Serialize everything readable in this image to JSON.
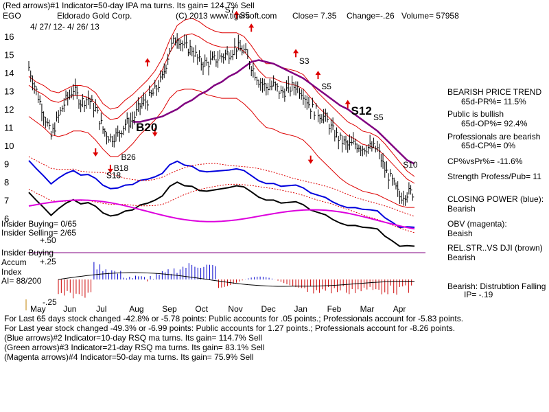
{
  "header": {
    "line1": "(Red arrows)#1 Indicator=50-day IPA ma turns. Its gain= 124.7% Sell",
    "ticker": "EGO",
    "company": "Eldorado Gold Corp.",
    "site": "(C) 2013 www.tigersoft.com",
    "close": "Close=  7.35",
    "change": "Change=-.26",
    "volume": "Volume=  57958",
    "date_range": "4/ 27/ 12-  4/ 26/ 13"
  },
  "right_panel": {
    "title": "BEARISH PRICE TREND",
    "pr": "65d-PR%= 11.5%",
    "public": "Public is bullish",
    "op": "65d-OP%= 92.4%",
    "pros": "Professionals are bearish",
    "cp": "65d-CP%= 0%",
    "cpvspr": "CP%vsPr%= -11.6%",
    "strength": "Strength Profess/Pub= 11",
    "closing_power": "CLOSING POWER (blue):",
    "cp_state": "Bearish",
    "obv": "OBV (magenta):",
    "obv_state": "Beaish",
    "relstr": "REL.STR..VS DJI (brown)",
    "relstr_state": "Bearish",
    "distribution": "Bearish:  Distrubtion Falling",
    "ip": "IP= -.19"
  },
  "left_panel": {
    "insider_buying": "Insider Buying= 0/65",
    "insider_selling": "Insider Selling= 2/65",
    "plus50": "+.50",
    "insider_buying2": "Insider Buying",
    "accum": "Accum",
    "plus25": "+.25",
    "index": "Index",
    "ai": "AI= 88/200",
    "minus25": "-.25"
  },
  "footer": {
    "l1": "For Last 65 days stock changed -42.8% or -5.78 points:  Public accounts for  .05 points.;  Professionals account for -5.83 points.",
    "l2": "For Last year stock changed -49.3% or -6.99 points:  Public accounts for  1.27 points.;  Professionals account for -8.26 points.",
    "l3": "(Blue arrows)#2 Indicator=10-day RSQ ma turns. Its gain= 114.7% Sell",
    "l4": "(Green arrows)#3 Indicator=21-day RSQ ma turns. Its gain= 83.1% Sell",
    "l5": "(Magenta arrows)#4 Indicator=50-day ma turns. Its gain= 75.9% Sell"
  },
  "colors": {
    "price": "#000000",
    "band": "#dd0000",
    "ma": "#800080",
    "cp": "#0000dd",
    "obv": "#dd00dd",
    "rel": "#000000",
    "accum_pos": "#0000cc",
    "accum_neg": "#cc0000"
  },
  "chart_data": {
    "type": "line",
    "title": "Eldorado Gold Corp. (EGO)",
    "x_labels": [
      "May",
      "Jun",
      "Jul",
      "Aug",
      "Sep",
      "Oct",
      "Nov",
      "Dec",
      "Jan",
      "Feb",
      "Mar",
      "Apr"
    ],
    "y_ticks": [
      16,
      15,
      14,
      13,
      12,
      11,
      10,
      9,
      8,
      7,
      6
    ],
    "ylim": [
      5.5,
      16.5
    ],
    "series": [
      {
        "name": "Price",
        "values": [
          14.3,
          13.0,
          11.8,
          10.5,
          11.6,
          12.5,
          13.1,
          12.4,
          12.6,
          12.0,
          10.9,
          10.4,
          10.6,
          11.2,
          11.4,
          12.2,
          12.5,
          13.0,
          13.7,
          15.3,
          16.0,
          15.4,
          15.3,
          14.6,
          14.5,
          14.7,
          14.9,
          15.1,
          15.4,
          15.2,
          14.4,
          13.6,
          13.2,
          13.3,
          12.9,
          13.1,
          13.3,
          12.9,
          12.1,
          11.8,
          11.5,
          10.8,
          10.3,
          10.0,
          10.1,
          9.9,
          9.9,
          9.8,
          8.7,
          8.0,
          7.2,
          7.4,
          7.4
        ]
      },
      {
        "name": "Upper band",
        "values": [
          13.8,
          13.5,
          13.3,
          13.0,
          12.9,
          13.1,
          13.3,
          13.3,
          13.2,
          12.9,
          12.3,
          12.0,
          12.1,
          12.5,
          12.8,
          13.2,
          13.6,
          14.1,
          14.8,
          15.8,
          16.6,
          16.9,
          17.0,
          16.8,
          16.5,
          16.3,
          16.2,
          16.2,
          16.2,
          16.0,
          15.5,
          14.9,
          14.5,
          14.5,
          14.3,
          14.2,
          14.1,
          13.9,
          13.4,
          12.9,
          12.5,
          12.1,
          11.7,
          11.3,
          11.1,
          10.8,
          10.7,
          10.5,
          10.1,
          9.6,
          9.1,
          8.6,
          8.3
        ]
      },
      {
        "name": "Lower band",
        "values": [
          11.6,
          11.3,
          11.0,
          10.6,
          10.5,
          10.6,
          10.8,
          10.8,
          10.7,
          10.3,
          9.8,
          9.4,
          9.4,
          9.7,
          10.1,
          10.6,
          11.0,
          11.4,
          11.9,
          12.6,
          13.0,
          13.1,
          13.1,
          13.0,
          12.8,
          12.7,
          12.6,
          12.6,
          12.6,
          12.3,
          11.9,
          11.4,
          11.0,
          10.9,
          10.7,
          10.6,
          10.5,
          10.3,
          9.9,
          9.4,
          9.0,
          8.6,
          8.2,
          7.9,
          7.7,
          7.5,
          7.4,
          7.3,
          7.1,
          6.9,
          6.7,
          6.6,
          6.6
        ]
      },
      {
        "name": "50-day MA",
        "values": [
          null,
          null,
          null,
          null,
          null,
          null,
          null,
          null,
          null,
          null,
          null,
          null,
          null,
          null,
          11.3,
          11.3,
          11.4,
          11.5,
          11.6,
          11.8,
          12.0,
          12.3,
          12.5,
          12.8,
          13.0,
          13.3,
          13.5,
          13.8,
          14.0,
          14.3,
          14.6,
          14.7,
          14.6,
          14.5,
          14.3,
          14.1,
          13.9,
          13.7,
          13.4,
          13.1,
          12.8,
          12.5,
          12.2,
          12.0,
          11.7,
          11.4,
          11.1,
          10.8,
          10.4,
          10.0,
          9.6,
          9.2,
          9.0
        ]
      }
    ],
    "signals": [
      "S18",
      "B18",
      "B26",
      "B20",
      "S7",
      "S5",
      "S3",
      "S5",
      "S12",
      "S5",
      "S10"
    ]
  }
}
